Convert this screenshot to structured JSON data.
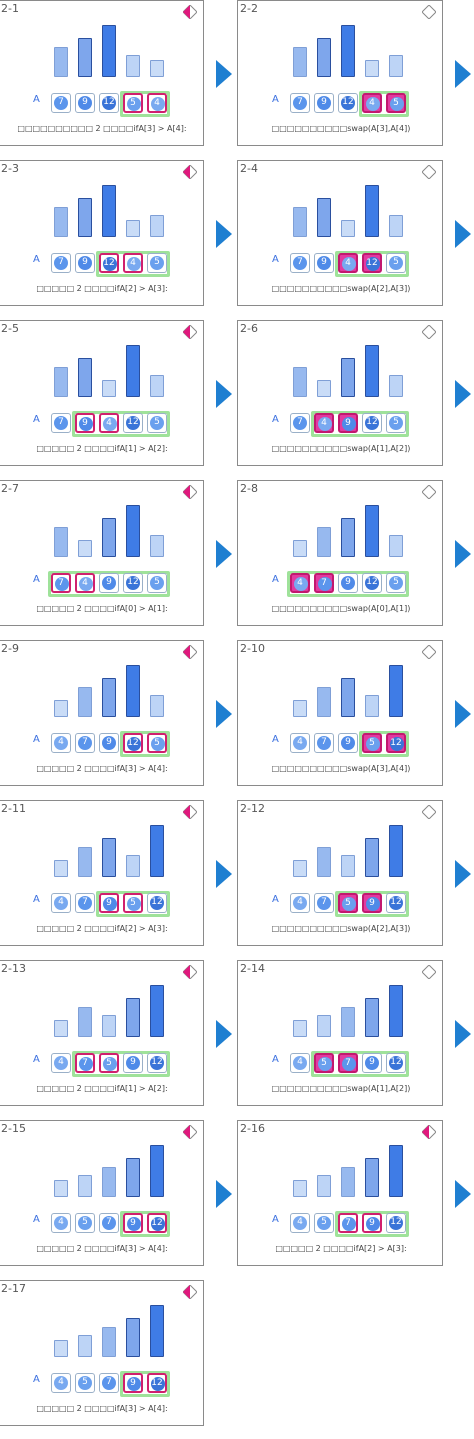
{
  "array_label": "A",
  "colors": {
    "accent": "#1f7fd1",
    "compare": "#e0197d",
    "window": "#9fe29a",
    "swap": "#e23aa0"
  },
  "steps": [
    {
      "label": "2-1",
      "values": [
        7,
        9,
        12,
        5,
        4
      ],
      "window": [
        3,
        4
      ],
      "highlight": [
        3,
        4
      ],
      "swap": false,
      "compare_active": true,
      "caption": "□□□□□□□□□□ 2 □□□□ifA[3] > A[4]:"
    },
    {
      "label": "2-2",
      "values": [
        7,
        9,
        12,
        4,
        5
      ],
      "window": [
        3,
        4
      ],
      "highlight": [
        3,
        4
      ],
      "swap": true,
      "compare_active": false,
      "caption": "□□□□□□□□□□swap(A[3],A[4])"
    },
    {
      "label": "2-3",
      "values": [
        7,
        9,
        12,
        4,
        5
      ],
      "window": [
        2,
        4
      ],
      "highlight": [
        2,
        3
      ],
      "swap": false,
      "compare_active": true,
      "caption": "□□□□□ 2 □□□□ifA[2] > A[3]:"
    },
    {
      "label": "2-4",
      "values": [
        7,
        9,
        4,
        12,
        5
      ],
      "window": [
        2,
        4
      ],
      "highlight": [
        2,
        3
      ],
      "swap": true,
      "compare_active": false,
      "caption": "□□□□□□□□□□swap(A[2],A[3])"
    },
    {
      "label": "2-5",
      "values": [
        7,
        9,
        4,
        12,
        5
      ],
      "window": [
        1,
        4
      ],
      "highlight": [
        1,
        2
      ],
      "swap": false,
      "compare_active": true,
      "caption": "□□□□□ 2 □□□□ifA[1] > A[2]:"
    },
    {
      "label": "2-6",
      "values": [
        7,
        4,
        9,
        12,
        5
      ],
      "window": [
        1,
        4
      ],
      "highlight": [
        1,
        2
      ],
      "swap": true,
      "compare_active": false,
      "caption": "□□□□□□□□□□swap(A[1],A[2])"
    },
    {
      "label": "2-7",
      "values": [
        7,
        4,
        9,
        12,
        5
      ],
      "window": [
        0,
        4
      ],
      "highlight": [
        0,
        1
      ],
      "swap": false,
      "compare_active": true,
      "caption": "□□□□□ 2 □□□□ifA[0] > A[1]:"
    },
    {
      "label": "2-8",
      "values": [
        4,
        7,
        9,
        12,
        5
      ],
      "window": [
        0,
        4
      ],
      "highlight": [
        0,
        1
      ],
      "swap": true,
      "compare_active": false,
      "caption": "□□□□□□□□□□swap(A[0],A[1])"
    },
    {
      "label": "2-9",
      "values": [
        4,
        7,
        9,
        12,
        5
      ],
      "window": [
        3,
        4
      ],
      "highlight": [
        3,
        4
      ],
      "swap": false,
      "compare_active": true,
      "caption": "□□□□□ 2 □□□□ifA[3] > A[4]:"
    },
    {
      "label": "2-10",
      "values": [
        4,
        7,
        9,
        5,
        12
      ],
      "window": [
        3,
        4
      ],
      "highlight": [
        3,
        4
      ],
      "swap": true,
      "compare_active": false,
      "caption": "□□□□□□□□□□swap(A[3],A[4])"
    },
    {
      "label": "2-11",
      "values": [
        4,
        7,
        9,
        5,
        12
      ],
      "window": [
        2,
        4
      ],
      "highlight": [
        2,
        3
      ],
      "swap": false,
      "compare_active": true,
      "caption": "□□□□□ 2 □□□□ifA[2] > A[3]:"
    },
    {
      "label": "2-12",
      "values": [
        4,
        7,
        5,
        9,
        12
      ],
      "window": [
        2,
        4
      ],
      "highlight": [
        2,
        3
      ],
      "swap": true,
      "compare_active": false,
      "caption": "□□□□□□□□□□swap(A[2],A[3])"
    },
    {
      "label": "2-13",
      "values": [
        4,
        7,
        5,
        9,
        12
      ],
      "window": [
        1,
        4
      ],
      "highlight": [
        1,
        2
      ],
      "swap": false,
      "compare_active": true,
      "caption": "□□□□□ 2 □□□□ifA[1] > A[2]:"
    },
    {
      "label": "2-14",
      "values": [
        4,
        5,
        7,
        9,
        12
      ],
      "window": [
        1,
        4
      ],
      "highlight": [
        1,
        2
      ],
      "swap": true,
      "compare_active": false,
      "caption": "□□□□□□□□□□swap(A[1],A[2])"
    },
    {
      "label": "2-15",
      "values": [
        4,
        5,
        7,
        9,
        12
      ],
      "window": [
        3,
        4
      ],
      "highlight": [
        3,
        4
      ],
      "swap": false,
      "compare_active": true,
      "caption": "□□□□□ 2 □□□□ifA[3] > A[4]:"
    },
    {
      "label": "2-16",
      "values": [
        4,
        5,
        7,
        9,
        12
      ],
      "window": [
        2,
        4
      ],
      "highlight": [
        2,
        3
      ],
      "swap": false,
      "compare_active": true,
      "caption": "□□□□□ 2 □□□□ifA[2] > A[3]:"
    },
    {
      "label": "2-17",
      "values": [
        4,
        5,
        7,
        9,
        12
      ],
      "window": [
        3,
        4
      ],
      "highlight": [
        3,
        4
      ],
      "swap": false,
      "compare_active": true,
      "caption": "□□□□□ 2 □□□□ifA[3] > A[4]:"
    }
  ]
}
